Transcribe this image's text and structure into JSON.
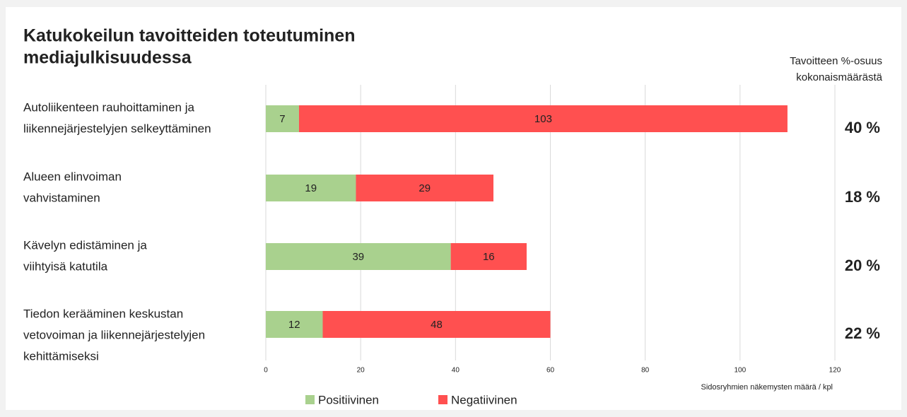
{
  "chart_data": {
    "type": "stacked_barh",
    "title": [
      "Katukokeilun tavoitteiden toteutuminen",
      "mediajulkisuudessa"
    ],
    "categories": [
      [
        "Autoliikenteen rauhoittaminen ja",
        "liikennejärjestelyjen selkeyttäminen"
      ],
      [
        "Alueen elinvoiman",
        "vahvistaminen"
      ],
      [
        "Kävelyn edistäminen ja",
        "viihtyisä katutila"
      ],
      [
        "Tiedon kerääminen keskustan",
        "vetovoiman ja liikennejärjestelyjen",
        "kehittämiseksi"
      ]
    ],
    "series": [
      {
        "name": "Positiivinen",
        "color": "#a9d18e",
        "values": [
          7,
          19,
          39,
          12
        ]
      },
      {
        "name": "Negatiivinen",
        "color": "#ff5050",
        "values": [
          103,
          29,
          16,
          48
        ]
      }
    ],
    "share_header": [
      "Tavoitteen %-osuus",
      "kokonaismäärästä"
    ],
    "shares": [
      "40 %",
      "18 %",
      "20 %",
      "22 %"
    ],
    "xlabel": "Sidosryhmien näkemysten määrä / kpl",
    "xlim": [
      0,
      120
    ],
    "xticks": [
      0,
      20,
      40,
      60,
      80,
      100,
      120
    ],
    "grid": true
  }
}
